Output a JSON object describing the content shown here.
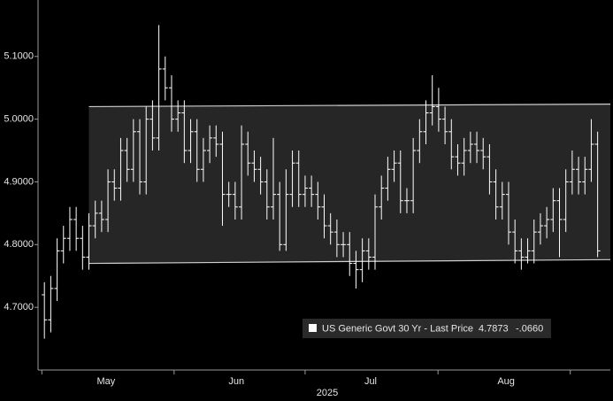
{
  "chart_data": {
    "type": "ohlc",
    "xlabel": "2025",
    "xlim": [
      -1,
      89
    ],
    "xticks": [
      {
        "value": 9.7,
        "label": "May"
      },
      {
        "value": 30.2,
        "label": "Jun"
      },
      {
        "value": 51.3,
        "label": "Jul"
      },
      {
        "value": 72.6,
        "label": "Aug"
      }
    ],
    "minor_xticks": [
      -0.4,
      20.4,
      41,
      61.9,
      82.7
    ],
    "ylim": [
      4.6,
      5.19
    ],
    "yticks": [
      {
        "value": 4.7,
        "label": "4.7000"
      },
      {
        "value": 4.8,
        "label": "4.8000"
      },
      {
        "value": 4.9,
        "label": "4.9000"
      },
      {
        "value": 5.0,
        "label": "5.0000"
      },
      {
        "value": 5.1,
        "label": "5.1000"
      }
    ],
    "color": "#ffffff",
    "channel": {
      "x": [
        7,
        89
      ],
      "upper": [
        5.02,
        5.024
      ],
      "lower": [
        4.77,
        4.776
      ],
      "color": "#cfcfcf"
    },
    "series": [
      {
        "name": "US Generic Govt 30 Yr - Last Price",
        "last": 4.7873,
        "change": {
          "value": -0.066,
          "label": "-.0660"
        },
        "open": [
          4.72,
          4.68,
          4.73,
          4.79,
          4.81,
          4.84,
          4.81,
          4.78,
          4.83,
          4.85,
          4.84,
          4.9,
          4.89,
          4.95,
          4.92,
          4.98,
          4.9,
          5.0,
          4.97,
          5.08,
          5.05,
          5.0,
          5.01,
          4.95,
          4.98,
          4.92,
          4.95,
          4.97,
          4.96,
          4.88,
          4.88,
          4.86,
          4.96,
          4.93,
          4.92,
          4.9,
          4.86,
          4.88,
          4.8,
          4.88,
          4.93,
          4.88,
          4.89,
          4.88,
          4.86,
          4.83,
          4.82,
          4.8,
          4.8,
          4.77,
          4.76,
          4.79,
          4.78,
          4.86,
          4.89,
          4.92,
          4.93,
          4.87,
          4.87,
          4.95,
          4.98,
          5.01,
          5.02,
          5.0,
          4.98,
          4.94,
          4.93,
          4.95,
          4.96,
          4.95,
          4.94,
          4.9,
          4.86,
          4.88,
          4.82,
          4.79,
          4.78,
          4.79,
          4.82,
          4.83,
          4.84,
          4.87,
          4.84,
          4.9,
          4.92,
          4.9,
          4.92,
          4.96
        ],
        "high": [
          4.74,
          4.75,
          4.81,
          4.83,
          4.86,
          4.86,
          4.83,
          4.85,
          4.87,
          4.87,
          4.92,
          4.92,
          4.97,
          4.97,
          5.0,
          5.0,
          5.02,
          5.03,
          5.15,
          5.1,
          5.07,
          5.03,
          5.03,
          5.0,
          5.0,
          4.97,
          4.99,
          4.99,
          4.98,
          4.9,
          4.9,
          4.99,
          4.98,
          4.95,
          4.94,
          4.92,
          4.97,
          4.9,
          4.92,
          4.95,
          4.95,
          4.91,
          4.91,
          4.9,
          4.88,
          4.85,
          4.84,
          4.82,
          4.82,
          4.79,
          4.81,
          4.81,
          4.88,
          4.91,
          4.94,
          4.95,
          4.95,
          4.89,
          4.97,
          5.0,
          5.03,
          5.07,
          5.05,
          5.02,
          5.0,
          4.96,
          4.97,
          4.98,
          4.98,
          4.97,
          4.96,
          4.92,
          4.9,
          4.9,
          4.84,
          4.81,
          4.81,
          4.84,
          4.85,
          4.86,
          4.89,
          4.89,
          4.92,
          4.95,
          4.94,
          4.94,
          5.0,
          4.98
        ],
        "low": [
          4.65,
          4.66,
          4.71,
          4.77,
          4.79,
          4.79,
          4.76,
          4.76,
          4.81,
          4.82,
          4.82,
          4.87,
          4.87,
          4.9,
          4.9,
          4.88,
          4.88,
          4.95,
          4.95,
          5.03,
          4.98,
          4.98,
          4.93,
          4.93,
          4.9,
          4.9,
          4.93,
          4.94,
          4.83,
          4.86,
          4.84,
          4.84,
          4.91,
          4.9,
          4.88,
          4.84,
          4.84,
          4.79,
          4.79,
          4.86,
          4.86,
          4.86,
          4.86,
          4.84,
          4.81,
          4.8,
          4.78,
          4.78,
          4.75,
          4.73,
          4.74,
          4.76,
          4.76,
          4.84,
          4.87,
          4.9,
          4.85,
          4.85,
          4.85,
          4.93,
          4.96,
          4.99,
          4.98,
          4.96,
          4.92,
          4.91,
          4.91,
          4.93,
          4.93,
          4.92,
          4.88,
          4.84,
          4.84,
          4.8,
          4.77,
          4.76,
          4.77,
          4.77,
          4.8,
          4.81,
          4.82,
          4.78,
          4.82,
          4.88,
          4.88,
          4.88,
          4.9,
          4.78
        ],
        "close": [
          4.68,
          4.73,
          4.79,
          4.81,
          4.84,
          4.81,
          4.78,
          4.83,
          4.85,
          4.84,
          4.9,
          4.89,
          4.95,
          4.92,
          4.98,
          4.9,
          5.0,
          4.97,
          5.08,
          5.05,
          5.0,
          5.01,
          4.95,
          4.98,
          4.92,
          4.95,
          4.97,
          4.96,
          4.88,
          4.88,
          4.86,
          4.96,
          4.93,
          4.92,
          4.9,
          4.86,
          4.88,
          4.8,
          4.88,
          4.93,
          4.88,
          4.89,
          4.88,
          4.86,
          4.83,
          4.82,
          4.8,
          4.8,
          4.77,
          4.76,
          4.79,
          4.78,
          4.86,
          4.89,
          4.92,
          4.93,
          4.87,
          4.87,
          4.95,
          4.98,
          5.01,
          5.02,
          5.0,
          4.98,
          4.94,
          4.93,
          4.95,
          4.96,
          4.95,
          4.94,
          4.9,
          4.86,
          4.88,
          4.82,
          4.79,
          4.78,
          4.79,
          4.82,
          4.83,
          4.84,
          4.87,
          4.84,
          4.9,
          4.92,
          4.9,
          4.92,
          4.96,
          4.79
        ]
      }
    ]
  }
}
